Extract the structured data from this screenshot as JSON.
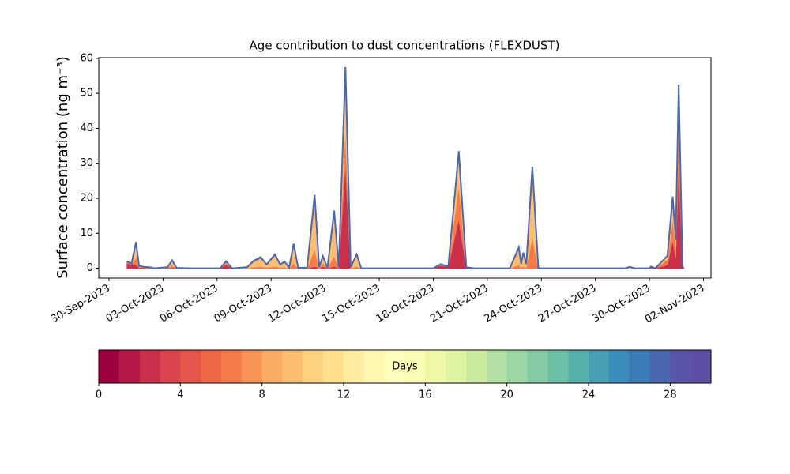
{
  "chart_data": {
    "type": "stacked_area",
    "title": "Age contribution to dust concentrations (FLEXDUST)",
    "ylabel": "Surface concentration (ng m⁻³)",
    "x": [
      "2023-10-01 00:00",
      "2023-10-01 06:00",
      "2023-10-01 12:00",
      "2023-10-01 16:00",
      "2023-10-01 22:00",
      "2023-10-02 06:00",
      "2023-10-02 12:00",
      "2023-10-03 06:00",
      "2023-10-03 12:00",
      "2023-10-03 18:00",
      "2023-10-04 12:00",
      "2023-10-06 04:00",
      "2023-10-06 12:00",
      "2023-10-06 20:00",
      "2023-10-07 16:00",
      "2023-10-08 00:00",
      "2023-10-08 10:00",
      "2023-10-08 18:00",
      "2023-10-09 05:00",
      "2023-10-09 12:00",
      "2023-10-09 18:00",
      "2023-10-10 00:00",
      "2023-10-10 06:00",
      "2023-10-10 12:00",
      "2023-10-11 00:00",
      "2023-10-11 10:00",
      "2023-10-11 16:00",
      "2023-10-11 21:00",
      "2023-10-12 03:00",
      "2023-10-12 12:00",
      "2023-10-12 18:00",
      "2023-10-13 03:00",
      "2023-10-13 10:00",
      "2023-10-13 18:00",
      "2023-10-14 00:00",
      "2023-10-18 00:00",
      "2023-10-18 10:00",
      "2023-10-18 20:00",
      "2023-10-19 10:00",
      "2023-10-19 20:00",
      "2023-10-20 06:00",
      "2023-10-22 06:00",
      "2023-10-22 18:00",
      "2023-10-22 21:00",
      "2023-10-23 00:00",
      "2023-10-23 04:00",
      "2023-10-23 12:00",
      "2023-10-23 20:00",
      "2023-10-28 16:00",
      "2023-10-28 22:00",
      "2023-10-29 04:00",
      "2023-10-30 00:00",
      "2023-10-30 02:00",
      "2023-10-30 08:00",
      "2023-10-31 00:00",
      "2023-10-31 07:00",
      "2023-10-31 11:00",
      "2023-10-31 15:00",
      "2023-10-31 20:00",
      "2023-10-31 22:00"
    ],
    "series": [
      {
        "color": "#c9314b",
        "values": [
          1.5,
          1,
          1,
          0.2,
          0.1,
          0,
          0,
          0,
          0.2,
          0,
          0,
          0,
          1,
          0,
          0,
          0,
          0,
          0,
          0,
          0,
          0,
          0,
          0,
          0,
          0,
          0.5,
          0,
          0.5,
          0,
          0.5,
          0,
          30,
          0,
          0,
          0,
          0,
          0.8,
          0.5,
          14,
          0.3,
          0,
          0,
          0,
          0,
          0,
          0,
          0,
          0,
          0,
          0,
          0,
          0,
          0.2,
          0,
          1,
          8,
          3,
          30,
          0.2,
          0
        ]
      },
      {
        "color": "#f67b4a",
        "values": [
          0.3,
          0.2,
          2,
          0.2,
          0.1,
          0.1,
          0,
          0.1,
          0.6,
          0,
          0,
          0,
          0.5,
          0,
          0,
          0.3,
          0.5,
          0.2,
          0.5,
          0.2,
          0.3,
          0,
          1.5,
          0,
          0,
          5,
          0,
          1,
          0,
          3,
          0,
          10,
          0,
          0.5,
          0,
          0,
          0.2,
          0,
          10,
          0,
          0,
          0,
          1,
          0.2,
          0.5,
          0.2,
          9,
          0,
          0,
          0,
          0,
          0,
          0.2,
          0,
          1.5,
          6,
          3,
          10,
          0.1,
          0
        ]
      },
      {
        "color": "#fdbe6f",
        "values": [
          0.2,
          0.1,
          4,
          0.3,
          0.2,
          0.2,
          0,
          0.2,
          1.3,
          0.1,
          0,
          0,
          0.4,
          0,
          0.3,
          1.5,
          2.4,
          0.8,
          3.1,
          0.8,
          1.5,
          0.2,
          5,
          0.1,
          0.2,
          14,
          0.3,
          1.8,
          0.1,
          12,
          0.2,
          15,
          0.3,
          3.2,
          0,
          0,
          0.1,
          0,
          8,
          0,
          0,
          0,
          4.5,
          1,
          3.7,
          1,
          18.5,
          0,
          0,
          0.3,
          0,
          0,
          0.1,
          0,
          1,
          5,
          2,
          10,
          0.1,
          0
        ]
      },
      {
        "color": "#4b67ae",
        "values": [
          0,
          0,
          0.5,
          0,
          0,
          0,
          0,
          0,
          0.2,
          0,
          0,
          0,
          0.1,
          0,
          0,
          0.2,
          0.3,
          0.1,
          0.4,
          0.1,
          0.1,
          0,
          0.5,
          0,
          0,
          1.5,
          0,
          0.2,
          0,
          1,
          0,
          2.5,
          0,
          0.3,
          0,
          0,
          0.1,
          0,
          1.5,
          0,
          0,
          0,
          0.5,
          0,
          0.3,
          0,
          1.5,
          0,
          0,
          0.1,
          0,
          0,
          0,
          0,
          0.1,
          1.5,
          0.2,
          2.5,
          0,
          0
        ]
      }
    ],
    "xlim": [
      "2023-09-29 10:20",
      "2023-11-02 10:00"
    ],
    "xticks": [
      {
        "value": "2023-09-30 00:00",
        "label": "30-Sep-2023"
      },
      {
        "value": "2023-10-03 00:00",
        "label": "03-Oct-2023"
      },
      {
        "value": "2023-10-06 00:00",
        "label": "06-Oct-2023"
      },
      {
        "value": "2023-10-09 00:00",
        "label": "09-Oct-2023"
      },
      {
        "value": "2023-10-12 00:00",
        "label": "12-Oct-2023"
      },
      {
        "value": "2023-10-15 00:00",
        "label": "15-Oct-2023"
      },
      {
        "value": "2023-10-18 00:00",
        "label": "18-Oct-2023"
      },
      {
        "value": "2023-10-21 00:00",
        "label": "21-Oct-2023"
      },
      {
        "value": "2023-10-24 00:00",
        "label": "24-Oct-2023"
      },
      {
        "value": "2023-10-27 00:00",
        "label": "27-Oct-2023"
      },
      {
        "value": "2023-10-30 00:00",
        "label": "30-Oct-2023"
      },
      {
        "value": "2023-11-02 00:00",
        "label": "02-Nov-2023"
      }
    ],
    "ylim": [
      -2.8,
      60.2
    ],
    "yticks": [
      0,
      10,
      20,
      30,
      40,
      50,
      60
    ],
    "colorbar": {
      "label": "Days",
      "lim": [
        0,
        30
      ],
      "ticks": [
        0,
        4,
        8,
        12,
        16,
        20,
        24,
        28
      ],
      "colors": [
        "#9e0142",
        "#b41947",
        "#c9314b",
        "#d9444e",
        "#e5554c",
        "#ef6645",
        "#f67b4a",
        "#f99455",
        "#fcab63",
        "#fdbe6f",
        "#fed27f",
        "#fee08b",
        "#feec9f",
        "#fff6b0",
        "#fffebe",
        "#f8fcb4",
        "#eef8a7",
        "#e0f3a0",
        "#cbea9e",
        "#b3e0a2",
        "#9cd6a4",
        "#84cba5",
        "#6dc0a5",
        "#58b1ab",
        "#47a0b3",
        "#3a8dbc",
        "#3a7bb8",
        "#4b67ae",
        "#5a55a6",
        "#5e4fa2"
      ]
    }
  }
}
